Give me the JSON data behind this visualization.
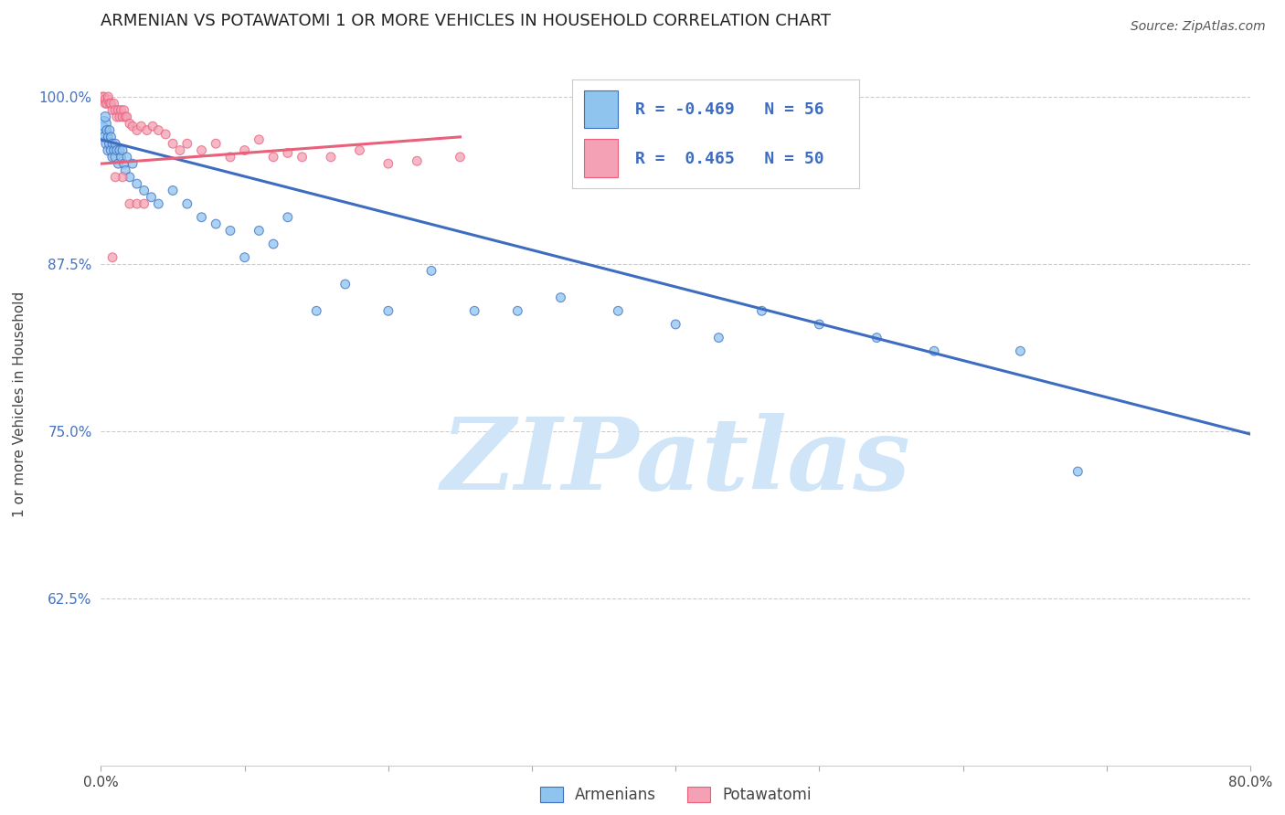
{
  "title": "ARMENIAN VS POTAWATOMI 1 OR MORE VEHICLES IN HOUSEHOLD CORRELATION CHART",
  "source": "Source: ZipAtlas.com",
  "ylabel": "1 or more Vehicles in Household",
  "xlim": [
    0.0,
    0.8
  ],
  "ylim": [
    0.5,
    1.04
  ],
  "xticks": [
    0.0,
    0.1,
    0.2,
    0.3,
    0.4,
    0.5,
    0.6,
    0.7,
    0.8
  ],
  "xticklabels": [
    "0.0%",
    "",
    "",
    "",
    "",
    "",
    "",
    "",
    "80.0%"
  ],
  "yticks": [
    0.625,
    0.75,
    0.875,
    1.0
  ],
  "yticklabels": [
    "62.5%",
    "75.0%",
    "87.5%",
    "100.0%"
  ],
  "legend_armenians": "Armenians",
  "legend_potawatomi": "Potawatomi",
  "R_armenians": -0.469,
  "N_armenians": 56,
  "R_potawatomi": 0.465,
  "N_potawatomi": 50,
  "color_armenians": "#8EC4EE",
  "color_potawatomi": "#F4A0B5",
  "line_color_armenians": "#3D6CC0",
  "line_color_potawatomi": "#E8607A",
  "watermark": "ZIPatlas",
  "watermark_color": "#D0E6F8",
  "armenians_x": [
    0.001,
    0.002,
    0.003,
    0.003,
    0.004,
    0.004,
    0.005,
    0.005,
    0.006,
    0.006,
    0.007,
    0.007,
    0.008,
    0.008,
    0.009,
    0.01,
    0.01,
    0.011,
    0.012,
    0.013,
    0.014,
    0.015,
    0.016,
    0.017,
    0.018,
    0.02,
    0.022,
    0.025,
    0.03,
    0.035,
    0.04,
    0.05,
    0.06,
    0.07,
    0.08,
    0.09,
    0.1,
    0.11,
    0.12,
    0.13,
    0.15,
    0.17,
    0.2,
    0.23,
    0.26,
    0.29,
    0.32,
    0.36,
    0.4,
    0.43,
    0.46,
    0.5,
    0.54,
    0.58,
    0.64,
    0.68
  ],
  "armenians_y": [
    0.975,
    0.98,
    0.97,
    0.985,
    0.965,
    0.975,
    0.96,
    0.97,
    0.965,
    0.975,
    0.96,
    0.97,
    0.955,
    0.965,
    0.96,
    0.955,
    0.965,
    0.96,
    0.95,
    0.96,
    0.955,
    0.96,
    0.95,
    0.945,
    0.955,
    0.94,
    0.95,
    0.935,
    0.93,
    0.925,
    0.92,
    0.93,
    0.92,
    0.91,
    0.905,
    0.9,
    0.88,
    0.9,
    0.89,
    0.91,
    0.84,
    0.86,
    0.84,
    0.87,
    0.84,
    0.84,
    0.85,
    0.84,
    0.83,
    0.82,
    0.84,
    0.83,
    0.82,
    0.81,
    0.81,
    0.72
  ],
  "armenians_size": [
    150,
    120,
    80,
    60,
    70,
    50,
    60,
    50,
    60,
    50,
    55,
    50,
    55,
    50,
    50,
    55,
    50,
    50,
    50,
    50,
    50,
    50,
    50,
    50,
    50,
    50,
    50,
    50,
    50,
    50,
    50,
    50,
    50,
    50,
    50,
    50,
    50,
    50,
    50,
    50,
    50,
    50,
    50,
    50,
    50,
    50,
    50,
    50,
    50,
    50,
    50,
    50,
    50,
    50,
    50,
    50
  ],
  "potawatomi_x": [
    0.001,
    0.002,
    0.003,
    0.003,
    0.004,
    0.005,
    0.005,
    0.006,
    0.007,
    0.008,
    0.009,
    0.01,
    0.011,
    0.012,
    0.013,
    0.014,
    0.015,
    0.016,
    0.017,
    0.018,
    0.02,
    0.022,
    0.025,
    0.028,
    0.032,
    0.036,
    0.04,
    0.045,
    0.05,
    0.055,
    0.06,
    0.07,
    0.08,
    0.09,
    0.1,
    0.11,
    0.12,
    0.13,
    0.14,
    0.16,
    0.18,
    0.2,
    0.22,
    0.25,
    0.02,
    0.015,
    0.01,
    0.008,
    0.025,
    0.03
  ],
  "potawatomi_y": [
    1.0,
    1.0,
    0.995,
    0.998,
    0.995,
    0.998,
    1.0,
    0.995,
    0.995,
    0.99,
    0.995,
    0.99,
    0.985,
    0.99,
    0.985,
    0.99,
    0.985,
    0.99,
    0.985,
    0.985,
    0.98,
    0.978,
    0.975,
    0.978,
    0.975,
    0.978,
    0.975,
    0.972,
    0.965,
    0.96,
    0.965,
    0.96,
    0.965,
    0.955,
    0.96,
    0.968,
    0.955,
    0.958,
    0.955,
    0.955,
    0.96,
    0.95,
    0.952,
    0.955,
    0.92,
    0.94,
    0.94,
    0.88,
    0.92,
    0.92
  ],
  "potawatomi_size": [
    50,
    50,
    50,
    50,
    50,
    50,
    50,
    50,
    50,
    50,
    50,
    50,
    50,
    50,
    50,
    50,
    50,
    50,
    50,
    50,
    50,
    50,
    50,
    50,
    50,
    50,
    50,
    50,
    50,
    50,
    50,
    50,
    50,
    50,
    50,
    50,
    50,
    50,
    50,
    50,
    50,
    50,
    50,
    50,
    50,
    50,
    50,
    50,
    50,
    50
  ],
  "line_armenians_x0": 0.0,
  "line_armenians_y0": 0.968,
  "line_armenians_x1": 0.8,
  "line_armenians_y1": 0.748,
  "line_potawatomi_x0": 0.0,
  "line_potawatomi_y0": 0.95,
  "line_potawatomi_x1": 0.25,
  "line_potawatomi_y1": 0.97
}
